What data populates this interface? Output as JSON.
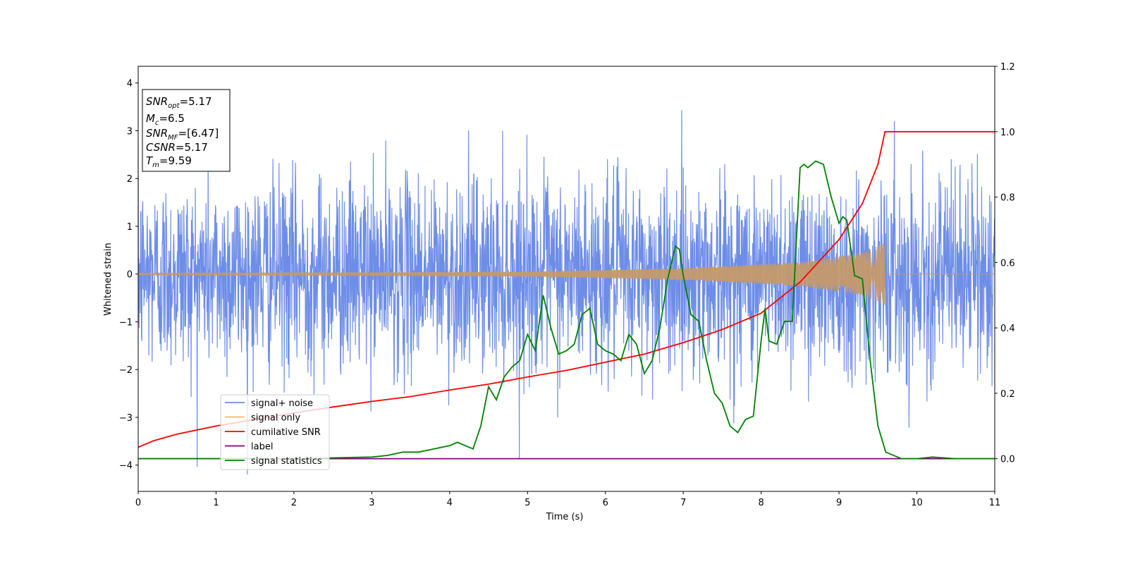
{
  "chart_data": {
    "type": "line",
    "xlabel": "Time (s)",
    "ylabel": "Whitened strain",
    "xlim": [
      0,
      11
    ],
    "ylim_left": [
      -4.55,
      4.35
    ],
    "ylim_right": [
      -0.1,
      1.2
    ],
    "x_ticks": [
      0,
      1,
      2,
      3,
      4,
      5,
      6,
      7,
      8,
      9,
      10,
      11
    ],
    "y_ticks_left": [
      -4,
      -3,
      -2,
      -1,
      0,
      1,
      2,
      3,
      4
    ],
    "y_ticks_right": [
      "0.0",
      "0.2",
      "0.4",
      "0.6",
      "0.8",
      "1.0",
      "1.2"
    ],
    "legend_position": "lower-left",
    "info_box": {
      "snr_opt": {
        "sym": "SNR",
        "sub": "opt",
        "value": "=5.17"
      },
      "mc": {
        "sym": "M",
        "sub": "c",
        "value": "=6.5"
      },
      "snr_mf": {
        "sym": "SNR",
        "sub": "MF",
        "value": "=[6.47]"
      },
      "csnr": {
        "sym": "CSNR",
        "sub": "",
        "value": "=5.17"
      },
      "tm": {
        "sym": "T",
        "sub": "m",
        "value": "=9.59"
      }
    },
    "series": [
      {
        "name": "signal+ noise",
        "color": "#6e8de8",
        "axis": "left",
        "description_kind": "gaussian-noise",
        "std": 1.0,
        "sample_rate": 256
      },
      {
        "name": "signal only",
        "color": "#f4b860",
        "axis": "left",
        "merger_time": 9.59,
        "envelope": [
          [
            0,
            0.02
          ],
          [
            3,
            0.03
          ],
          [
            5,
            0.05
          ],
          [
            7,
            0.12
          ],
          [
            8.5,
            0.25
          ],
          [
            9.3,
            0.45
          ],
          [
            9.59,
            0.65
          ]
        ]
      },
      {
        "name": "cumilative SNR",
        "color": "#ff0000",
        "axis": "right",
        "x": [
          0,
          0.2,
          0.5,
          1,
          1.5,
          2,
          2.5,
          3,
          3.5,
          4,
          4.5,
          5,
          5.5,
          6,
          6.5,
          7,
          7.5,
          8,
          8.5,
          9,
          9.3,
          9.5,
          9.59,
          9.6,
          11
        ],
        "y": [
          0.035,
          0.055,
          0.075,
          0.1,
          0.12,
          0.14,
          0.158,
          0.175,
          0.19,
          0.21,
          0.228,
          0.25,
          0.27,
          0.295,
          0.32,
          0.355,
          0.395,
          0.445,
          0.54,
          0.67,
          0.78,
          0.9,
          1.0,
          1.0,
          1.0
        ]
      },
      {
        "name": "label",
        "color": "#800080",
        "axis": "right",
        "x": [
          0,
          11
        ],
        "y": [
          0,
          0
        ]
      },
      {
        "name": "signal statistics",
        "color": "#008000",
        "axis": "right",
        "x": [
          0,
          0.5,
          1,
          2,
          3,
          3.2,
          3.4,
          3.6,
          3.8,
          4.0,
          4.1,
          4.2,
          4.3,
          4.4,
          4.5,
          4.6,
          4.7,
          4.8,
          4.9,
          5.0,
          5.1,
          5.2,
          5.3,
          5.4,
          5.5,
          5.6,
          5.7,
          5.8,
          5.9,
          6.0,
          6.1,
          6.2,
          6.3,
          6.4,
          6.5,
          6.6,
          6.7,
          6.8,
          6.9,
          6.95,
          7.0,
          7.1,
          7.2,
          7.3,
          7.4,
          7.5,
          7.6,
          7.7,
          7.8,
          7.9,
          8.0,
          8.05,
          8.1,
          8.2,
          8.3,
          8.4,
          8.5,
          8.55,
          8.6,
          8.7,
          8.8,
          8.9,
          9.0,
          9.05,
          9.1,
          9.2,
          9.3,
          9.4,
          9.5,
          9.6,
          9.8,
          10,
          10.2,
          10.5,
          11
        ],
        "y": [
          0.0,
          0.0,
          0.0,
          0.0,
          0.005,
          0.01,
          0.02,
          0.02,
          0.03,
          0.04,
          0.05,
          0.04,
          0.03,
          0.1,
          0.22,
          0.18,
          0.25,
          0.28,
          0.3,
          0.38,
          0.33,
          0.5,
          0.4,
          0.32,
          0.33,
          0.35,
          0.44,
          0.46,
          0.35,
          0.33,
          0.32,
          0.3,
          0.38,
          0.35,
          0.26,
          0.3,
          0.4,
          0.55,
          0.65,
          0.64,
          0.56,
          0.44,
          0.42,
          0.3,
          0.2,
          0.17,
          0.1,
          0.08,
          0.12,
          0.13,
          0.36,
          0.46,
          0.36,
          0.35,
          0.42,
          0.42,
          0.89,
          0.9,
          0.89,
          0.91,
          0.9,
          0.8,
          0.72,
          0.74,
          0.73,
          0.56,
          0.55,
          0.3,
          0.1,
          0.02,
          0.0,
          0.0,
          0.005,
          0.0,
          0.0
        ]
      }
    ]
  }
}
